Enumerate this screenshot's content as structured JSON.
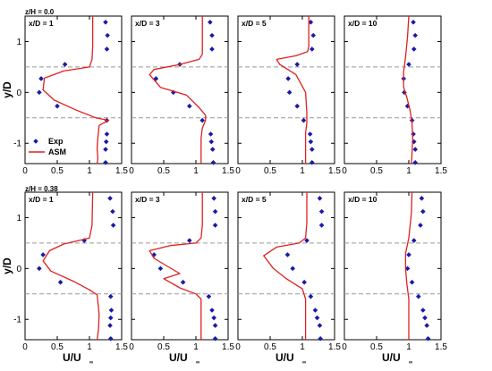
{
  "figure": {
    "y_axis_label": "y/D",
    "x_axis_label_main": "U/U",
    "x_axis_label_sub": "∞",
    "colors": {
      "exp": "#1a1aa8",
      "asm": "#e02020",
      "reference_lines": "#999999",
      "axes": "#000000"
    },
    "legend": {
      "entries": [
        "Exp",
        "ASM"
      ],
      "placement": "bottom-left of first panel, top row"
    }
  },
  "rows": [
    {
      "label": "z/H = 0.0"
    },
    {
      "label": "z/H = 0.38"
    }
  ],
  "chart_data": [
    {
      "type": "scatter+line",
      "row": 0,
      "col": 0,
      "title": "x/D = 1",
      "xlim": [
        0,
        1.5
      ],
      "ylim": [
        -1.4,
        1.5
      ],
      "xticks": [
        "0",
        "0.5",
        "1",
        "1.5"
      ],
      "yticks": [
        "-1",
        "0",
        "1"
      ],
      "ytick_values": [
        -1,
        0,
        1
      ],
      "show_yticklabels": true,
      "reference_lines_y": [
        0.5,
        -0.5
      ],
      "series": [
        {
          "name": "Exp",
          "kind": "markers",
          "x": [
            1.25,
            1.28,
            1.27,
            0.62,
            0.25,
            0.22,
            0.5,
            1.27,
            1.27,
            1.26,
            1.25,
            1.25
          ],
          "y": [
            1.38,
            1.12,
            0.85,
            0.55,
            0.27,
            0.0,
            -0.27,
            -0.55,
            -0.82,
            -0.97,
            -1.12,
            -1.38
          ]
        },
        {
          "name": "ASM",
          "kind": "line",
          "x": [
            1.05,
            1.05,
            1.04,
            1.0,
            0.6,
            0.3,
            0.28,
            0.45,
            0.8,
            1.1,
            1.3,
            1.15,
            1.13,
            1.12,
            1.13,
            1.12
          ],
          "y": [
            1.5,
            0.9,
            0.65,
            0.5,
            0.42,
            0.28,
            0.05,
            -0.15,
            -0.35,
            -0.5,
            -0.55,
            -0.65,
            -0.9,
            -1.1,
            -1.3,
            -1.4
          ]
        }
      ]
    },
    {
      "type": "scatter+line",
      "row": 0,
      "col": 1,
      "title": "x/D = 3",
      "xlim": [
        0,
        1.5
      ],
      "ylim": [
        -1.4,
        1.5
      ],
      "xticks": [
        "0",
        "0.5",
        "1",
        "1.5"
      ],
      "yticks": [
        "-1",
        "0",
        "1"
      ],
      "ytick_values": [
        -1,
        0,
        1
      ],
      "show_yticklabels": false,
      "reference_lines_y": [
        0.5,
        -0.5
      ],
      "series": [
        {
          "name": "Exp",
          "kind": "markers",
          "x": [
            1.22,
            1.25,
            1.25,
            0.75,
            0.38,
            0.65,
            0.9,
            1.1,
            1.23,
            1.24,
            1.26,
            1.27
          ],
          "y": [
            1.38,
            1.12,
            0.85,
            0.55,
            0.27,
            0.0,
            -0.27,
            -0.55,
            -0.82,
            -0.97,
            -1.12,
            -1.38
          ]
        },
        {
          "name": "ASM",
          "kind": "line",
          "x": [
            1.1,
            1.1,
            1.1,
            1.05,
            0.75,
            0.35,
            0.28,
            0.45,
            0.85,
            1.05,
            1.15,
            1.15,
            1.1,
            1.08,
            1.08,
            1.08
          ],
          "y": [
            1.5,
            0.95,
            0.75,
            0.65,
            0.55,
            0.45,
            0.35,
            0.1,
            -0.05,
            -0.3,
            -0.45,
            -0.55,
            -0.7,
            -0.9,
            -1.2,
            -1.4
          ]
        }
      ]
    },
    {
      "type": "scatter+line",
      "row": 0,
      "col": 2,
      "title": "x/D = 5",
      "xlim": [
        0,
        1.5
      ],
      "ylim": [
        -1.4,
        1.5
      ],
      "xticks": [
        "0",
        "0.5",
        "1",
        "1.5"
      ],
      "yticks": [
        "-1",
        "0",
        "1"
      ],
      "ytick_values": [
        -1,
        0,
        1
      ],
      "show_yticklabels": false,
      "reference_lines_y": [
        0.5,
        -0.5
      ],
      "series": [
        {
          "name": "Exp",
          "kind": "markers",
          "x": [
            1.13,
            1.17,
            1.15,
            0.92,
            0.78,
            0.8,
            0.92,
            1.02,
            1.12,
            1.13,
            1.15,
            1.15
          ],
          "y": [
            1.38,
            1.12,
            0.85,
            0.55,
            0.27,
            0.0,
            -0.27,
            -0.55,
            -0.82,
            -0.97,
            -1.12,
            -1.38
          ]
        },
        {
          "name": "ASM",
          "kind": "line",
          "x": [
            1.1,
            1.1,
            1.1,
            1.08,
            0.9,
            0.6,
            0.65,
            0.9,
            1.05,
            1.07,
            1.07,
            1.05,
            1.05,
            1.05
          ],
          "y": [
            1.5,
            1.0,
            0.9,
            0.8,
            0.72,
            0.65,
            0.55,
            0.35,
            0.0,
            -0.4,
            -0.6,
            -0.8,
            -1.1,
            -1.4
          ]
        }
      ]
    },
    {
      "type": "scatter+line",
      "row": 0,
      "col": 3,
      "title": "x/D = 10",
      "xlim": [
        0,
        1.5
      ],
      "ylim": [
        -1.4,
        1.5
      ],
      "xticks": [
        "0",
        "0.5",
        "1",
        "1.5"
      ],
      "yticks": [
        "-1",
        "0",
        "1"
      ],
      "ytick_values": [
        -1,
        0,
        1
      ],
      "show_yticklabels": false,
      "reference_lines_y": [
        0.5,
        -0.5
      ],
      "series": [
        {
          "name": "Exp",
          "kind": "markers",
          "x": [
            1.07,
            1.1,
            1.08,
            1.0,
            0.92,
            0.93,
            0.98,
            1.05,
            1.07,
            1.08,
            1.1,
            1.1
          ],
          "y": [
            1.38,
            1.12,
            0.85,
            0.55,
            0.27,
            0.0,
            -0.27,
            -0.55,
            -0.82,
            -0.97,
            -1.12,
            -1.38
          ]
        },
        {
          "name": "ASM",
          "kind": "line",
          "x": [
            1.0,
            0.98,
            0.95,
            0.92,
            0.92,
            0.97,
            1.02,
            1.05,
            1.06,
            1.05,
            1.04
          ],
          "y": [
            1.5,
            1.1,
            0.7,
            0.4,
            0.1,
            -0.1,
            -0.35,
            -0.6,
            -0.9,
            -1.2,
            -1.4
          ]
        }
      ]
    },
    {
      "type": "scatter+line",
      "row": 1,
      "col": 0,
      "title": "x/D = 1",
      "xlim": [
        0,
        1.5
      ],
      "ylim": [
        -1.4,
        1.5
      ],
      "xticks": [
        "0",
        "0.5",
        "1",
        "1.5"
      ],
      "yticks": [
        "-1",
        "0",
        "1"
      ],
      "ytick_values": [
        -1,
        0,
        1
      ],
      "show_yticklabels": true,
      "reference_lines_y": [
        0.5,
        -0.5
      ],
      "series": [
        {
          "name": "Exp",
          "kind": "markers",
          "x": [
            1.32,
            1.36,
            1.37,
            0.92,
            0.28,
            0.22,
            0.55,
            1.33,
            1.34,
            1.33,
            1.32,
            1.33
          ],
          "y": [
            1.38,
            1.12,
            0.85,
            0.55,
            0.27,
            0.0,
            -0.27,
            -0.55,
            -0.82,
            -0.97,
            -1.12,
            -1.38
          ]
        },
        {
          "name": "ASM",
          "kind": "line",
          "x": [
            1.05,
            1.04,
            1.0,
            0.6,
            0.38,
            0.28,
            0.4,
            0.75,
            1.0,
            1.12,
            1.13,
            1.15,
            1.14,
            1.12
          ],
          "y": [
            1.5,
            0.85,
            0.6,
            0.48,
            0.35,
            0.15,
            -0.05,
            -0.25,
            -0.42,
            -0.52,
            -0.65,
            -0.9,
            -1.2,
            -1.4
          ]
        }
      ]
    },
    {
      "type": "scatter+line",
      "row": 1,
      "col": 1,
      "title": "x/D = 3",
      "xlim": [
        0,
        1.5
      ],
      "ylim": [
        -1.4,
        1.5
      ],
      "xticks": [
        "0",
        "0.5",
        "1",
        "1.5"
      ],
      "yticks": [
        "-1",
        "0",
        "1"
      ],
      "ytick_values": [
        -1,
        0,
        1
      ],
      "show_yticklabels": false,
      "reference_lines_y": [
        0.5,
        -0.5
      ],
      "series": [
        {
          "name": "Exp",
          "kind": "markers",
          "x": [
            1.28,
            1.3,
            1.3,
            0.9,
            0.35,
            0.45,
            0.8,
            1.2,
            1.25,
            1.28,
            1.3,
            1.3
          ],
          "y": [
            1.38,
            1.12,
            0.85,
            0.55,
            0.27,
            0.0,
            -0.27,
            -0.55,
            -0.82,
            -0.97,
            -1.12,
            -1.38
          ]
        },
        {
          "name": "ASM",
          "kind": "line",
          "x": [
            1.1,
            1.1,
            1.08,
            1.0,
            0.6,
            0.28,
            0.35,
            0.55,
            0.75,
            0.5,
            0.75,
            1.0,
            1.08,
            1.08,
            1.08
          ],
          "y": [
            1.5,
            0.85,
            0.6,
            0.5,
            0.45,
            0.35,
            0.2,
            0.05,
            -0.1,
            -0.2,
            -0.38,
            -0.5,
            -0.6,
            -1.0,
            -1.4
          ]
        }
      ]
    },
    {
      "type": "scatter+line",
      "row": 1,
      "col": 2,
      "title": "x/D = 5",
      "xlim": [
        0,
        1.5
      ],
      "ylim": [
        -1.4,
        1.5
      ],
      "xticks": [
        "0",
        "0.5",
        "1",
        "1.5"
      ],
      "yticks": [
        "-1",
        "0",
        "1"
      ],
      "ytick_values": [
        -1,
        0,
        1
      ],
      "show_yticklabels": false,
      "reference_lines_y": [
        0.5,
        -0.5
      ],
      "series": [
        {
          "name": "Exp",
          "kind": "markers",
          "x": [
            1.27,
            1.3,
            1.3,
            1.07,
            0.77,
            0.85,
            1.03,
            1.13,
            1.2,
            1.23,
            1.27,
            1.28
          ],
          "y": [
            1.38,
            1.12,
            0.85,
            0.55,
            0.27,
            0.0,
            -0.27,
            -0.55,
            -0.82,
            -0.97,
            -1.12,
            -1.38
          ]
        },
        {
          "name": "ASM",
          "kind": "line",
          "x": [
            1.07,
            1.07,
            1.05,
            0.95,
            0.6,
            0.4,
            0.55,
            0.75,
            1.0,
            1.05,
            1.05,
            1.05
          ],
          "y": [
            1.5,
            0.9,
            0.6,
            0.5,
            0.42,
            0.25,
            0.0,
            -0.2,
            -0.4,
            -0.6,
            -1.0,
            -1.4
          ]
        }
      ]
    },
    {
      "type": "scatter+line",
      "row": 1,
      "col": 3,
      "title": "x/D = 10",
      "xlim": [
        0,
        1.5
      ],
      "ylim": [
        -1.4,
        1.5
      ],
      "xticks": [
        "0",
        "0.5",
        "1",
        "1.5"
      ],
      "yticks": [
        "-1",
        "0",
        "1"
      ],
      "ytick_values": [
        -1,
        0,
        1
      ],
      "show_yticklabels": false,
      "reference_lines_y": [
        0.5,
        -0.5
      ],
      "series": [
        {
          "name": "Exp",
          "kind": "markers",
          "x": [
            1.2,
            1.22,
            1.18,
            1.08,
            1.0,
            0.98,
            1.05,
            1.15,
            1.22,
            1.25,
            1.28,
            1.3
          ],
          "y": [
            1.38,
            1.12,
            0.85,
            0.55,
            0.27,
            0.0,
            -0.27,
            -0.55,
            -0.82,
            -0.97,
            -1.12,
            -1.38
          ]
        },
        {
          "name": "ASM",
          "kind": "line",
          "x": [
            1.05,
            1.04,
            1.0,
            0.95,
            0.95,
            0.97,
            1.0,
            1.0,
            1.0
          ],
          "y": [
            1.5,
            1.1,
            0.6,
            0.3,
            0.0,
            -0.3,
            -0.6,
            -1.0,
            -1.4
          ]
        }
      ]
    }
  ]
}
